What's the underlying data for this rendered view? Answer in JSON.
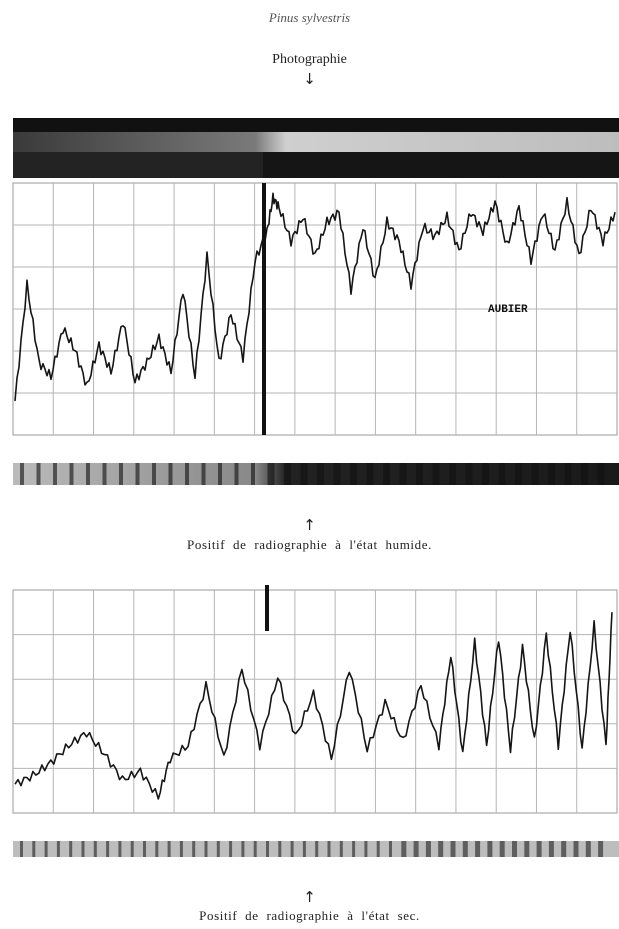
{
  "figure": {
    "species": "Pinus sylvestris",
    "photo_label": "Photographie",
    "arrow_down": "↓",
    "arrow_up": "↑",
    "wet_caption": "Positif de radiographie à l'état humide.",
    "dry_caption": "Positif de radiographie à l'état sec.",
    "zone_label": "AUBIER"
  },
  "chart_data": [
    {
      "type": "line",
      "title": "",
      "xlabel": "",
      "ylabel": "",
      "grid": true,
      "x": [
        0,
        0.02,
        0.04,
        0.06,
        0.08,
        0.1,
        0.12,
        0.14,
        0.16,
        0.18,
        0.2,
        0.22,
        0.24,
        0.26,
        0.28,
        0.3,
        0.32,
        0.34,
        0.36,
        0.38,
        0.4,
        0.42,
        0.43,
        0.44,
        0.46,
        0.48,
        0.5,
        0.52,
        0.54,
        0.56,
        0.58,
        0.6,
        0.62,
        0.64,
        0.66,
        0.68,
        0.7,
        0.72,
        0.74,
        0.76,
        0.78,
        0.8,
        0.82,
        0.84,
        0.86,
        0.88,
        0.9,
        0.92,
        0.94,
        0.96,
        0.98,
        1.0
      ],
      "series": [
        {
          "values": [
            0.12,
            0.6,
            0.28,
            0.22,
            0.42,
            0.33,
            0.18,
            0.35,
            0.24,
            0.45,
            0.2,
            0.28,
            0.38,
            0.24,
            0.58,
            0.22,
            0.72,
            0.28,
            0.48,
            0.3,
            0.7,
            0.82,
            0.96,
            0.92,
            0.78,
            0.88,
            0.72,
            0.86,
            0.9,
            0.58,
            0.84,
            0.62,
            0.86,
            0.78,
            0.6,
            0.84,
            0.8,
            0.88,
            0.74,
            0.9,
            0.82,
            0.94,
            0.76,
            0.92,
            0.7,
            0.9,
            0.74,
            0.94,
            0.72,
            0.92,
            0.78,
            0.9
          ]
        }
      ]
    },
    {
      "type": "line",
      "title": "",
      "xlabel": "",
      "ylabel": "",
      "grid": true,
      "x": [
        0,
        0.03,
        0.06,
        0.09,
        0.12,
        0.15,
        0.18,
        0.21,
        0.24,
        0.26,
        0.29,
        0.32,
        0.35,
        0.38,
        0.41,
        0.44,
        0.47,
        0.5,
        0.53,
        0.56,
        0.59,
        0.62,
        0.65,
        0.68,
        0.71,
        0.73,
        0.75,
        0.77,
        0.79,
        0.81,
        0.83,
        0.85,
        0.87,
        0.89,
        0.91,
        0.93,
        0.95,
        0.97,
        0.99,
        1.0
      ],
      "series": [
        {
          "values": [
            0.12,
            0.16,
            0.22,
            0.3,
            0.36,
            0.26,
            0.14,
            0.18,
            0.06,
            0.24,
            0.3,
            0.58,
            0.24,
            0.66,
            0.3,
            0.62,
            0.34,
            0.54,
            0.24,
            0.66,
            0.28,
            0.5,
            0.32,
            0.58,
            0.3,
            0.72,
            0.26,
            0.78,
            0.3,
            0.8,
            0.28,
            0.76,
            0.32,
            0.82,
            0.3,
            0.84,
            0.28,
            0.86,
            0.3,
            0.92
          ]
        }
      ]
    }
  ]
}
